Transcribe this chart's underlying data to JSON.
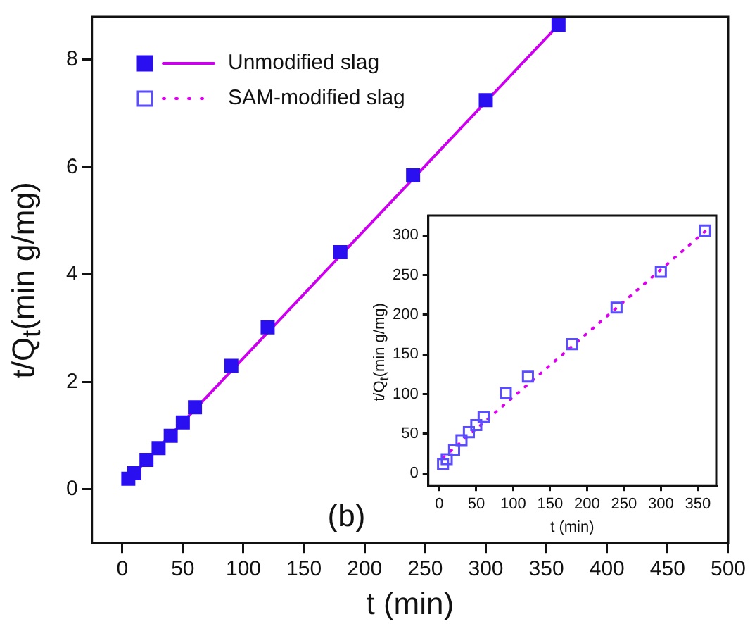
{
  "chart_data": [
    {
      "type": "scatter",
      "xlabel": "t (min)",
      "ylabel": "t/Q$_{t}$(min g/mg)",
      "xlim": [
        -25,
        500
      ],
      "xticks": [
        0,
        50,
        100,
        150,
        200,
        250,
        300,
        350,
        400,
        450,
        500
      ],
      "ylim": [
        -1,
        8.8
      ],
      "yticks": [
        0,
        2,
        4,
        6,
        8
      ],
      "legend": "top left",
      "annotations": [
        "(b)"
      ],
      "series": [
        {
          "name": "Unmodified slag",
          "marker": "square",
          "color": "#2a0ff0",
          "x": [
            5,
            10,
            20,
            30,
            40,
            50,
            60,
            90,
            120,
            180,
            240,
            300,
            360
          ],
          "values": [
            0.2,
            0.3,
            0.55,
            0.77,
            1.0,
            1.25,
            1.53,
            2.3,
            3.02,
            4.42,
            5.85,
            7.25,
            8.65
          ]
        },
        {
          "type": "line",
          "line_style": "solid",
          "color": "#cc00ee",
          "x": [
            5,
            360
          ],
          "values": [
            0.18,
            8.65
          ]
        }
      ]
    },
    {
      "type": "scatter",
      "xlabel": "t (min)",
      "ylabel": "t/Q$_{t}$(min g/mg)",
      "xlim": [
        -15,
        375
      ],
      "xticks": [
        0,
        50,
        100,
        150,
        200,
        250,
        300,
        350
      ],
      "ylim": [
        -15,
        325
      ],
      "yticks": [
        0,
        50,
        100,
        150,
        200,
        250,
        300
      ],
      "series": [
        {
          "name": "SAM-modified slag",
          "marker": "square",
          "color": "#5a4cff",
          "x": [
            5,
            10,
            20,
            30,
            40,
            50,
            60,
            90,
            120,
            180,
            240,
            300,
            360
          ],
          "values": [
            12,
            18,
            30,
            42,
            52,
            61,
            71,
            101,
            122,
            163,
            209,
            254,
            306
          ]
        },
        {
          "type": "line",
          "line_style": "dotted",
          "color": "#dd00ee",
          "x": [
            5,
            360
          ],
          "values": [
            20,
            305
          ]
        }
      ]
    }
  ]
}
